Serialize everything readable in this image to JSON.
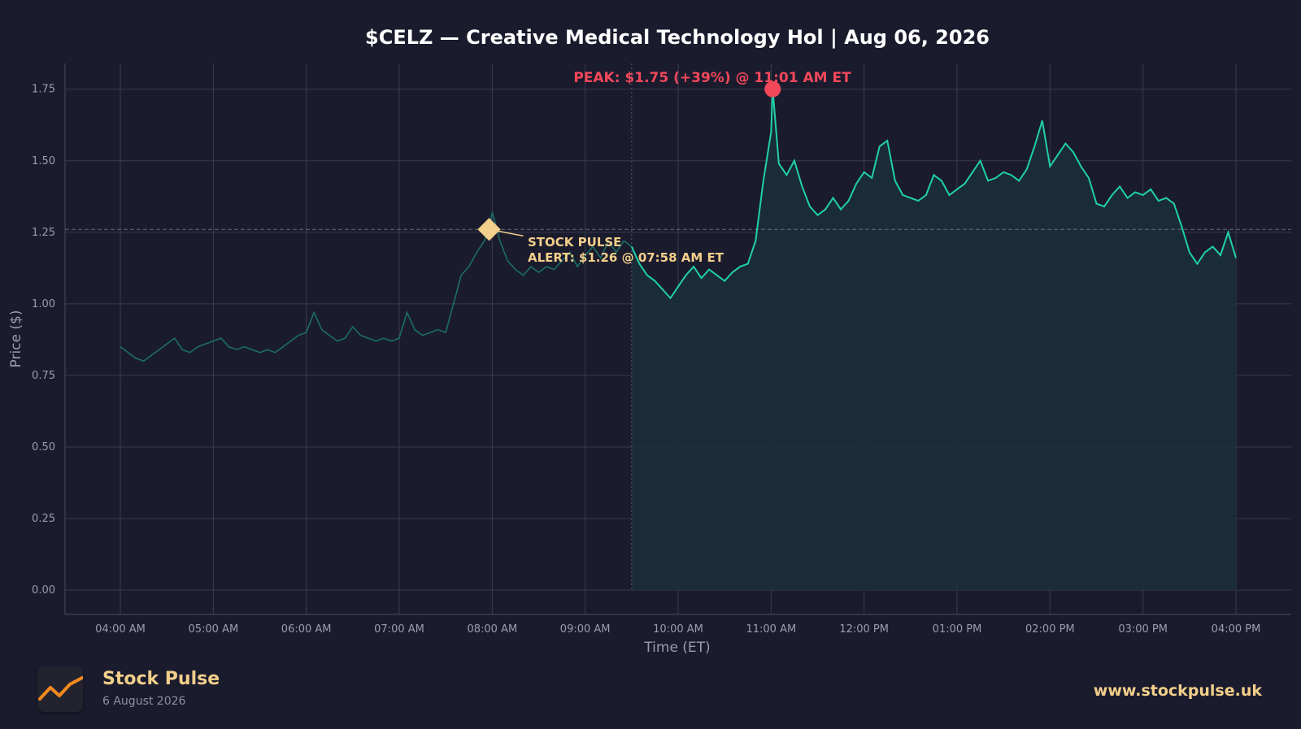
{
  "chart_data": {
    "type": "line",
    "title": "$CELZ — Creative Medical Technology Hol  |  Aug 06, 2026",
    "xlabel": "Time (ET)",
    "ylabel": "Price ($)",
    "x_start": "04:00 AM",
    "x_end": "04:00 PM",
    "ylim": [
      -0.085,
      1.84
    ],
    "yticks": [
      "0.00",
      "0.25",
      "0.50",
      "0.75",
      "1.00",
      "1.25",
      "1.50",
      "1.75"
    ],
    "ytick_values": [
      0,
      0.25,
      0.5,
      0.75,
      1.0,
      1.25,
      1.5,
      1.75
    ],
    "xticks": [
      "04:00 AM",
      "05:00 AM",
      "06:00 AM",
      "07:00 AM",
      "08:00 AM",
      "09:00 AM",
      "10:00 AM",
      "11:00 AM",
      "12:00 PM",
      "01:00 PM",
      "02:00 PM",
      "03:00 PM",
      "04:00 PM"
    ],
    "grid": true,
    "market_open": "09:30 AM",
    "alert_price": 1.26,
    "series": [
      {
        "values": [
          [
            "04:00 AM",
            0.85
          ],
          [
            "04:05 AM",
            0.83
          ],
          [
            "04:10 AM",
            0.81
          ],
          [
            "04:15 AM",
            0.8
          ],
          [
            "04:20 AM",
            0.82
          ],
          [
            "04:25 AM",
            0.84
          ],
          [
            "04:30 AM",
            0.86
          ],
          [
            "04:35 AM",
            0.88
          ],
          [
            "04:40 AM",
            0.84
          ],
          [
            "04:45 AM",
            0.83
          ],
          [
            "04:50 AM",
            0.85
          ],
          [
            "04:55 AM",
            0.86
          ],
          [
            "05:00 AM",
            0.87
          ],
          [
            "05:05 AM",
            0.88
          ],
          [
            "05:10 AM",
            0.85
          ],
          [
            "05:15 AM",
            0.84
          ],
          [
            "05:20 AM",
            0.85
          ],
          [
            "05:25 AM",
            0.84
          ],
          [
            "05:30 AM",
            0.83
          ],
          [
            "05:35 AM",
            0.84
          ],
          [
            "05:40 AM",
            0.83
          ],
          [
            "05:45 AM",
            0.85
          ],
          [
            "05:50 AM",
            0.87
          ],
          [
            "05:55 AM",
            0.89
          ],
          [
            "06:00 AM",
            0.9
          ],
          [
            "06:05 AM",
            0.97
          ],
          [
            "06:10 AM",
            0.91
          ],
          [
            "06:15 AM",
            0.89
          ],
          [
            "06:20 AM",
            0.87
          ],
          [
            "06:25 AM",
            0.88
          ],
          [
            "06:30 AM",
            0.92
          ],
          [
            "06:35 AM",
            0.89
          ],
          [
            "06:40 AM",
            0.88
          ],
          [
            "06:45 AM",
            0.87
          ],
          [
            "06:50 AM",
            0.88
          ],
          [
            "06:55 AM",
            0.87
          ],
          [
            "07:00 AM",
            0.88
          ],
          [
            "07:05 AM",
            0.97
          ],
          [
            "07:10 AM",
            0.91
          ],
          [
            "07:15 AM",
            0.89
          ],
          [
            "07:20 AM",
            0.9
          ],
          [
            "07:25 AM",
            0.91
          ],
          [
            "07:30 AM",
            0.9
          ],
          [
            "07:35 AM",
            1.0
          ],
          [
            "07:40 AM",
            1.1
          ],
          [
            "07:45 AM",
            1.13
          ],
          [
            "07:50 AM",
            1.18
          ],
          [
            "07:55 AM",
            1.22
          ],
          [
            "07:58 AM",
            1.26
          ],
          [
            "08:00 AM",
            1.32
          ],
          [
            "08:05 AM",
            1.22
          ],
          [
            "08:10 AM",
            1.15
          ],
          [
            "08:15 AM",
            1.12
          ],
          [
            "08:20 AM",
            1.1
          ],
          [
            "08:25 AM",
            1.13
          ],
          [
            "08:30 AM",
            1.11
          ],
          [
            "08:35 AM",
            1.13
          ],
          [
            "08:40 AM",
            1.12
          ],
          [
            "08:45 AM",
            1.15
          ],
          [
            "08:50 AM",
            1.18
          ],
          [
            "08:55 AM",
            1.13
          ],
          [
            "09:00 AM",
            1.17
          ],
          [
            "09:05 AM",
            1.2
          ],
          [
            "09:10 AM",
            1.16
          ],
          [
            "09:15 AM",
            1.22
          ],
          [
            "09:20 AM",
            1.18
          ],
          [
            "09:25 AM",
            1.22
          ],
          [
            "09:30 AM",
            1.2
          ],
          [
            "09:35 AM",
            1.14
          ],
          [
            "09:40 AM",
            1.1
          ],
          [
            "09:45 AM",
            1.08
          ],
          [
            "09:50 AM",
            1.05
          ],
          [
            "09:55 AM",
            1.02
          ],
          [
            "10:00 AM",
            1.06
          ],
          [
            "10:05 AM",
            1.1
          ],
          [
            "10:10 AM",
            1.13
          ],
          [
            "10:15 AM",
            1.09
          ],
          [
            "10:20 AM",
            1.12
          ],
          [
            "10:25 AM",
            1.1
          ],
          [
            "10:30 AM",
            1.08
          ],
          [
            "10:35 AM",
            1.11
          ],
          [
            "10:40 AM",
            1.13
          ],
          [
            "10:45 AM",
            1.14
          ],
          [
            "10:50 AM",
            1.22
          ],
          [
            "10:55 AM",
            1.43
          ],
          [
            "11:00 AM",
            1.6
          ],
          [
            "11:01 AM",
            1.75
          ],
          [
            "11:05 AM",
            1.49
          ],
          [
            "11:10 AM",
            1.45
          ],
          [
            "11:15 AM",
            1.5
          ],
          [
            "11:20 AM",
            1.41
          ],
          [
            "11:25 AM",
            1.34
          ],
          [
            "11:30 AM",
            1.31
          ],
          [
            "11:35 AM",
            1.33
          ],
          [
            "11:40 AM",
            1.37
          ],
          [
            "11:45 AM",
            1.33
          ],
          [
            "11:50 AM",
            1.36
          ],
          [
            "11:55 AM",
            1.42
          ],
          [
            "12:00 PM",
            1.46
          ],
          [
            "12:05 PM",
            1.44
          ],
          [
            "12:10 PM",
            1.55
          ],
          [
            "12:15 PM",
            1.57
          ],
          [
            "12:20 PM",
            1.43
          ],
          [
            "12:25 PM",
            1.38
          ],
          [
            "12:30 PM",
            1.37
          ],
          [
            "12:35 PM",
            1.36
          ],
          [
            "12:40 PM",
            1.38
          ],
          [
            "12:45 PM",
            1.45
          ],
          [
            "12:50 PM",
            1.43
          ],
          [
            "12:55 PM",
            1.38
          ],
          [
            "01:00 PM",
            1.4
          ],
          [
            "01:05 PM",
            1.42
          ],
          [
            "01:10 PM",
            1.46
          ],
          [
            "01:15 PM",
            1.5
          ],
          [
            "01:20 PM",
            1.43
          ],
          [
            "01:25 PM",
            1.44
          ],
          [
            "01:30 PM",
            1.46
          ],
          [
            "01:35 PM",
            1.45
          ],
          [
            "01:40 PM",
            1.43
          ],
          [
            "01:45 PM",
            1.47
          ],
          [
            "01:50 PM",
            1.55
          ],
          [
            "01:55 PM",
            1.64
          ],
          [
            "02:00 PM",
            1.48
          ],
          [
            "02:05 PM",
            1.52
          ],
          [
            "02:10 PM",
            1.56
          ],
          [
            "02:15 PM",
            1.53
          ],
          [
            "02:20 PM",
            1.48
          ],
          [
            "02:25 PM",
            1.44
          ],
          [
            "02:30 PM",
            1.35
          ],
          [
            "02:35 PM",
            1.34
          ],
          [
            "02:40 PM",
            1.38
          ],
          [
            "02:45 PM",
            1.41
          ],
          [
            "02:50 PM",
            1.37
          ],
          [
            "02:55 PM",
            1.39
          ],
          [
            "03:00 PM",
            1.38
          ],
          [
            "03:05 PM",
            1.4
          ],
          [
            "03:10 PM",
            1.36
          ],
          [
            "03:15 PM",
            1.37
          ],
          [
            "03:20 PM",
            1.35
          ],
          [
            "03:25 PM",
            1.27
          ],
          [
            "03:30 PM",
            1.18
          ],
          [
            "03:35 PM",
            1.14
          ],
          [
            "03:40 PM",
            1.18
          ],
          [
            "03:45 PM",
            1.2
          ],
          [
            "03:50 PM",
            1.17
          ],
          [
            "03:55 PM",
            1.25
          ],
          [
            "04:00 PM",
            1.16
          ]
        ]
      }
    ],
    "annotations": {
      "peak": {
        "time": "11:01 AM",
        "price": 1.75,
        "label": "PEAK: $1.75 (+39%) @ 11:01 AM ET"
      },
      "alert": {
        "time": "07:58 AM",
        "price": 1.26,
        "label_line1": "STOCK PULSE",
        "label_line2": "ALERT: $1.26 @ 07:58 AM ET"
      }
    }
  },
  "colors": {
    "background": "#1b1b2e",
    "grid": "#3a3b4f",
    "axis_text": "#9a9cab",
    "line_post": "#1fd1a8",
    "line_pre": "#1a6e63",
    "fill": "#1b2f3a",
    "peak": "#f2485a",
    "alert": "#f2cf8a",
    "title": "#ffffff"
  },
  "footer": {
    "brand": "Stock Pulse",
    "date": "6 August 2026",
    "url": "www.stockpulse.uk",
    "logo_icon": "trend-line-icon"
  }
}
